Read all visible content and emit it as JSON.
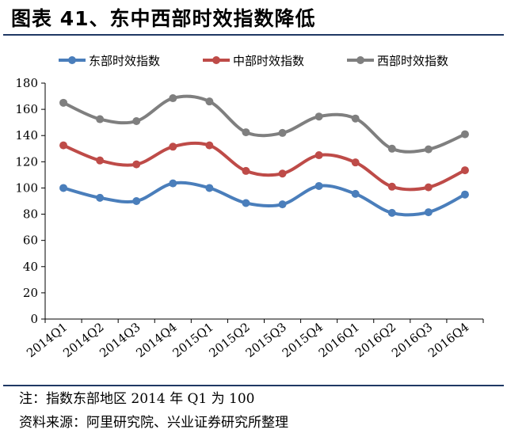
{
  "title": "图表 41、东中西部时效指数降低",
  "note": "注：指数东部地区 2014 年 Q1 为 100",
  "source": "资料来源：阿里研究院、兴业证券研究所整理",
  "chart_data": {
    "type": "line",
    "categories": [
      "2014Q1",
      "2014Q2",
      "2014Q3",
      "2014Q4",
      "2015Q1",
      "2015Q2",
      "2015Q3",
      "2015Q4",
      "2016Q1",
      "2016Q2",
      "2016Q3",
      "2016Q4"
    ],
    "ylim": [
      0,
      180
    ],
    "yticks": [
      0,
      20,
      40,
      60,
      80,
      100,
      120,
      140,
      160,
      180
    ],
    "grid": false,
    "legend": "top",
    "smooth": true,
    "series": [
      {
        "name": "东部时效指数",
        "color": "#4a7ebb",
        "values": [
          100,
          92.5,
          90,
          103.5,
          100,
          88.5,
          87.5,
          101.5,
          95.5,
          81,
          81.5,
          95
        ]
      },
      {
        "name": "中部时效指数",
        "color": "#be4b48",
        "values": [
          132.5,
          121,
          118,
          131.5,
          132.5,
          113,
          111,
          125,
          119.5,
          101,
          100.5,
          113.5
        ]
      },
      {
        "name": "西部时效指数",
        "color": "#7f7f7f",
        "values": [
          165,
          152.5,
          151,
          168.5,
          166,
          142.5,
          142,
          154.5,
          153,
          130,
          129.5,
          141
        ]
      }
    ]
  }
}
